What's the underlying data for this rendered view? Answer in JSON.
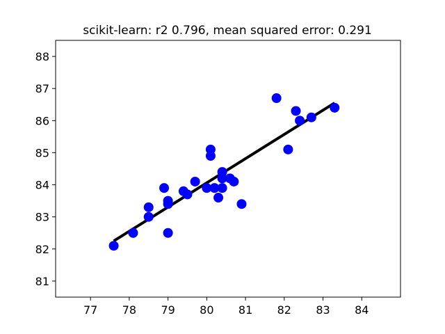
{
  "chart_data": {
    "type": "scatter",
    "title": "scikit-learn: r2 0.796, mean squared error: 0.291",
    "xlabel": "",
    "ylabel": "",
    "xlim": [
      76.1,
      85.0
    ],
    "ylim": [
      80.5,
      88.5
    ],
    "xticks": [
      77,
      78,
      79,
      80,
      81,
      82,
      83,
      84
    ],
    "yticks": [
      81,
      82,
      83,
      84,
      85,
      86,
      87,
      88
    ],
    "grid": false,
    "point_color": "#0000ff",
    "line_color": "#000000",
    "points": [
      {
        "x": 77.6,
        "y": 82.1
      },
      {
        "x": 78.1,
        "y": 82.5
      },
      {
        "x": 78.5,
        "y": 83.0
      },
      {
        "x": 78.5,
        "y": 83.3
      },
      {
        "x": 78.9,
        "y": 83.9
      },
      {
        "x": 79.0,
        "y": 83.4
      },
      {
        "x": 79.0,
        "y": 83.5
      },
      {
        "x": 79.0,
        "y": 82.5
      },
      {
        "x": 79.4,
        "y": 83.8
      },
      {
        "x": 79.5,
        "y": 83.7
      },
      {
        "x": 79.7,
        "y": 84.1
      },
      {
        "x": 80.0,
        "y": 83.9
      },
      {
        "x": 80.1,
        "y": 85.1
      },
      {
        "x": 80.1,
        "y": 84.9
      },
      {
        "x": 80.2,
        "y": 83.9
      },
      {
        "x": 80.3,
        "y": 83.6
      },
      {
        "x": 80.4,
        "y": 84.4
      },
      {
        "x": 80.4,
        "y": 84.2
      },
      {
        "x": 80.4,
        "y": 83.9
      },
      {
        "x": 80.6,
        "y": 84.2
      },
      {
        "x": 80.7,
        "y": 84.1
      },
      {
        "x": 80.9,
        "y": 83.4
      },
      {
        "x": 81.8,
        "y": 86.7
      },
      {
        "x": 82.1,
        "y": 85.1
      },
      {
        "x": 82.3,
        "y": 86.3
      },
      {
        "x": 82.4,
        "y": 86.0
      },
      {
        "x": 82.7,
        "y": 86.1
      },
      {
        "x": 83.3,
        "y": 86.4
      }
    ],
    "fit_line": [
      {
        "x": 77.6,
        "y": 82.25
      },
      {
        "x": 83.3,
        "y": 86.55
      }
    ]
  }
}
